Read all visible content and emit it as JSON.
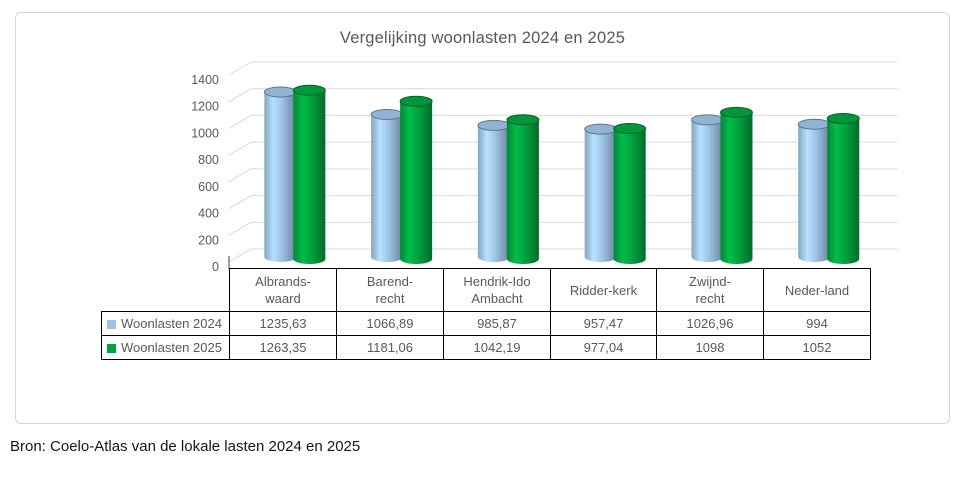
{
  "source": "Bron: Coelo-Atlas van de lokale lasten 2024 en 2025",
  "chart_data": {
    "type": "bar",
    "subtype": "cylinder-3d",
    "title": "Vergelijking woonlasten 2024 en 2025",
    "categories": [
      "Albrands-\nwaard",
      "Barend-\nrecht",
      "Hendrik-Ido\nAmbacht",
      "Ridder-kerk",
      "Zwijnd-\nrecht",
      "Neder-land"
    ],
    "series": [
      {
        "name": "Woonlasten 2024",
        "color": "#9DC3E6",
        "values": [
          1235.63,
          1066.89,
          985.87,
          957.47,
          1026.96,
          994
        ],
        "display": [
          "1235,63",
          "1066,89",
          "985,87",
          "957,47",
          "1026,96",
          "994"
        ]
      },
      {
        "name": "Woonlasten 2025",
        "color": "#00A33E",
        "values": [
          1263.35,
          1181.06,
          1042.19,
          977.04,
          1098,
          1052
        ],
        "display": [
          "1263,35",
          "1181,06",
          "1042,19",
          "977,04",
          "1098",
          "1052"
        ]
      }
    ],
    "ylim": [
      0,
      1400
    ],
    "ytick_step": 200,
    "yticks": [
      "0",
      "200",
      "400",
      "600",
      "800",
      "1000",
      "1200",
      "1400"
    ],
    "grid": true,
    "legend_position": "table-left",
    "data_table": true,
    "axis_text_color": "#595959",
    "gridline_color": "#D9D9D9"
  }
}
